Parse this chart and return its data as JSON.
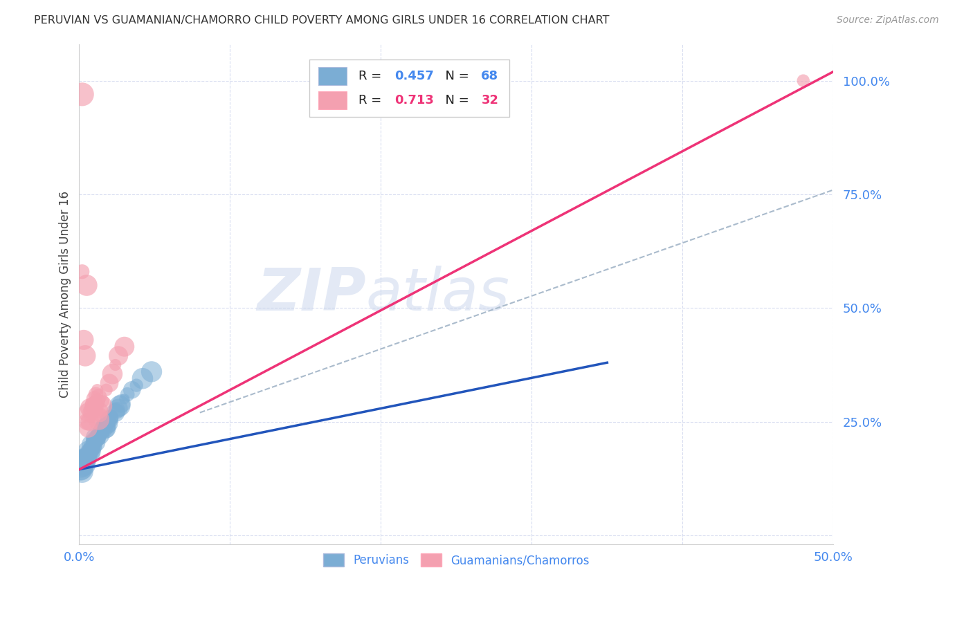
{
  "title": "PERUVIAN VS GUAMANIAN/CHAMORRO CHILD POVERTY AMONG GIRLS UNDER 16 CORRELATION CHART",
  "source": "Source: ZipAtlas.com",
  "ylabel": "Child Poverty Among Girls Under 16",
  "xlim": [
    0.0,
    0.5
  ],
  "ylim": [
    -0.02,
    1.08
  ],
  "yticks": [
    0.0,
    0.25,
    0.5,
    0.75,
    1.0
  ],
  "ytick_labels": [
    "",
    "25.0%",
    "50.0%",
    "75.0%",
    "100.0%"
  ],
  "xticks": [
    0.0,
    0.1,
    0.2,
    0.3,
    0.4,
    0.5
  ],
  "xtick_labels": [
    "0.0%",
    "",
    "",
    "",
    "",
    "50.0%"
  ],
  "blue_R": 0.457,
  "blue_N": 68,
  "pink_R": 0.713,
  "pink_N": 32,
  "blue_color": "#7badd4",
  "pink_color": "#f4a0b0",
  "blue_line_color": "#2255bb",
  "pink_line_color": "#ee3377",
  "axis_color": "#4488ee",
  "grid_color": "#d8ddf0",
  "watermark_color": "#c8d4ec",
  "background_color": "#ffffff",
  "peruvian_dots": [
    [
      0.001,
      0.155
    ],
    [
      0.001,
      0.145
    ],
    [
      0.001,
      0.15
    ],
    [
      0.001,
      0.16
    ],
    [
      0.002,
      0.155
    ],
    [
      0.002,
      0.14
    ],
    [
      0.002,
      0.16
    ],
    [
      0.002,
      0.165
    ],
    [
      0.002,
      0.15
    ],
    [
      0.003,
      0.155
    ],
    [
      0.003,
      0.16
    ],
    [
      0.003,
      0.17
    ],
    [
      0.003,
      0.145
    ],
    [
      0.004,
      0.165
    ],
    [
      0.004,
      0.17
    ],
    [
      0.004,
      0.155
    ],
    [
      0.005,
      0.175
    ],
    [
      0.005,
      0.165
    ],
    [
      0.005,
      0.17
    ],
    [
      0.006,
      0.18
    ],
    [
      0.006,
      0.175
    ],
    [
      0.006,
      0.185
    ],
    [
      0.007,
      0.19
    ],
    [
      0.007,
      0.185
    ],
    [
      0.007,
      0.18
    ],
    [
      0.008,
      0.195
    ],
    [
      0.008,
      0.19
    ],
    [
      0.008,
      0.2
    ],
    [
      0.009,
      0.195
    ],
    [
      0.009,
      0.185
    ],
    [
      0.009,
      0.2
    ],
    [
      0.01,
      0.205
    ],
    [
      0.01,
      0.195
    ],
    [
      0.01,
      0.21
    ],
    [
      0.011,
      0.21
    ],
    [
      0.011,
      0.215
    ],
    [
      0.011,
      0.205
    ],
    [
      0.012,
      0.22
    ],
    [
      0.012,
      0.215
    ],
    [
      0.013,
      0.225
    ],
    [
      0.013,
      0.22
    ],
    [
      0.014,
      0.23
    ],
    [
      0.014,
      0.22
    ],
    [
      0.015,
      0.235
    ],
    [
      0.015,
      0.23
    ],
    [
      0.016,
      0.235
    ],
    [
      0.017,
      0.24
    ],
    [
      0.017,
      0.235
    ],
    [
      0.018,
      0.245
    ],
    [
      0.018,
      0.235
    ],
    [
      0.019,
      0.25
    ],
    [
      0.019,
      0.24
    ],
    [
      0.02,
      0.255
    ],
    [
      0.02,
      0.245
    ],
    [
      0.021,
      0.26
    ],
    [
      0.022,
      0.265
    ],
    [
      0.022,
      0.255
    ],
    [
      0.024,
      0.27
    ],
    [
      0.025,
      0.275
    ],
    [
      0.026,
      0.28
    ],
    [
      0.027,
      0.285
    ],
    [
      0.028,
      0.29
    ],
    [
      0.03,
      0.3
    ],
    [
      0.032,
      0.31
    ],
    [
      0.035,
      0.32
    ],
    [
      0.038,
      0.33
    ],
    [
      0.042,
      0.345
    ],
    [
      0.048,
      0.36
    ]
  ],
  "guamanian_dots": [
    [
      0.002,
      0.97
    ],
    [
      0.002,
      0.58
    ],
    [
      0.003,
      0.43
    ],
    [
      0.004,
      0.395
    ],
    [
      0.005,
      0.55
    ],
    [
      0.005,
      0.25
    ],
    [
      0.006,
      0.235
    ],
    [
      0.006,
      0.27
    ],
    [
      0.007,
      0.25
    ],
    [
      0.007,
      0.28
    ],
    [
      0.008,
      0.29
    ],
    [
      0.008,
      0.275
    ],
    [
      0.009,
      0.285
    ],
    [
      0.009,
      0.27
    ],
    [
      0.01,
      0.3
    ],
    [
      0.01,
      0.285
    ],
    [
      0.011,
      0.31
    ],
    [
      0.012,
      0.295
    ],
    [
      0.012,
      0.32
    ],
    [
      0.013,
      0.305
    ],
    [
      0.013,
      0.255
    ],
    [
      0.014,
      0.265
    ],
    [
      0.014,
      0.275
    ],
    [
      0.015,
      0.285
    ],
    [
      0.016,
      0.295
    ],
    [
      0.018,
      0.32
    ],
    [
      0.02,
      0.335
    ],
    [
      0.022,
      0.355
    ],
    [
      0.024,
      0.375
    ],
    [
      0.026,
      0.395
    ],
    [
      0.03,
      0.415
    ],
    [
      0.48,
      1.0
    ]
  ],
  "blue_line_x": [
    0.0,
    0.35
  ],
  "blue_line_y": [
    0.145,
    0.38
  ],
  "pink_line_x": [
    0.0,
    0.5
  ],
  "pink_line_y": [
    0.145,
    1.02
  ],
  "ref_line_x": [
    0.08,
    0.5
  ],
  "ref_line_y": [
    0.27,
    0.76
  ]
}
